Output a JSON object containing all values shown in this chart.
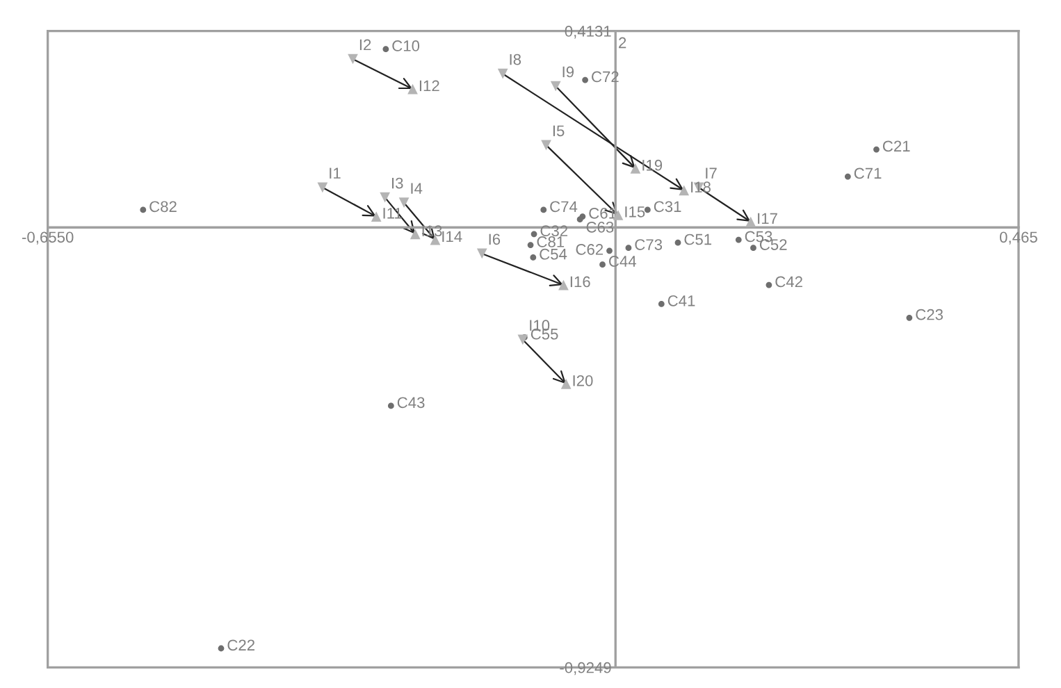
{
  "chart_data": {
    "type": "scatter",
    "ylabel": "2",
    "xlim": [
      -0.655,
      0.465
    ],
    "ylim": [
      -0.9249,
      0.4131
    ],
    "xticks": [
      {
        "value": -0.655,
        "label": "-0,6550"
      },
      {
        "value": 0.465,
        "label": "0,465"
      }
    ],
    "yticks": [
      {
        "value": 0.4131,
        "label": "0,4131"
      },
      {
        "value": -0.9249,
        "label": "-0,9249"
      }
    ],
    "grid": false,
    "legend": false,
    "series": [
      {
        "marker": "circle",
        "color": "#6e6e6e",
        "x": [
          -0.265,
          -0.035,
          -0.545,
          0.301,
          0.268,
          -0.083,
          -0.038,
          -0.041,
          0.037,
          -0.094,
          -0.098,
          -0.095,
          -0.007,
          0.015,
          -0.015,
          0.072,
          0.142,
          0.159,
          0.177,
          0.053,
          0.339,
          -0.105,
          -0.259,
          -0.455
        ],
        "values": [
          0.375,
          0.31,
          0.037,
          0.164,
          0.107,
          0.037,
          0.023,
          0.017,
          0.037,
          -0.014,
          -0.037,
          -0.063,
          -0.049,
          -0.043,
          -0.078,
          -0.032,
          -0.026,
          -0.043,
          -0.121,
          -0.161,
          -0.19,
          -0.231,
          -0.375,
          -0.885
        ],
        "value_labels": [
          "C10",
          "C72",
          "C82",
          "C21",
          "C71",
          "C74",
          "C61",
          "C63",
          "C31",
          "C32",
          "C81",
          "C54",
          "C62",
          "C73",
          "C44",
          "C51",
          "C53",
          "C52",
          "C42",
          "C41",
          "C23",
          "C55",
          "C43",
          "C22"
        ]
      },
      {
        "marker": "triangle_down",
        "color": "#b4b4b4",
        "x": [
          -0.303,
          -0.13,
          -0.069,
          -0.08,
          -0.338,
          -0.266,
          -0.244,
          -0.154,
          0.096,
          -0.107
        ],
        "values": [
          0.354,
          0.323,
          0.297,
          0.173,
          0.084,
          0.063,
          0.052,
          -0.055,
          0.084,
          -0.236
        ],
        "value_labels": [
          "I2",
          "I8",
          "I9",
          "I5",
          "I1",
          "I3",
          "I4",
          "I6",
          "I7",
          "I10"
        ]
      },
      {
        "marker": "triangle",
        "color": "#b4b4b4",
        "x": [
          -0.234,
          -0.276,
          -0.231,
          -0.208,
          0.023,
          0.079,
          0.003,
          0.156,
          -0.06,
          -0.057
        ],
        "values": [
          0.291,
          0.023,
          -0.014,
          -0.026,
          0.124,
          0.078,
          0.026,
          0.012,
          -0.121,
          -0.329
        ],
        "value_labels": [
          "I12",
          "I11",
          "I13",
          "I14",
          "I19",
          "I18",
          "I15",
          "I17",
          "I16",
          "I20"
        ]
      },
      {
        "type": "line",
        "color": "#222222",
        "x": [
          -0.303,
          -0.234
        ],
        "values": [
          0.354,
          0.291
        ]
      },
      {
        "type": "line",
        "color": "#222222",
        "x": [
          -0.13,
          0.079
        ],
        "values": [
          0.323,
          0.078
        ]
      },
      {
        "type": "line",
        "color": "#222222",
        "x": [
          -0.069,
          0.023
        ],
        "values": [
          0.297,
          0.124
        ]
      },
      {
        "type": "line",
        "color": "#222222",
        "x": [
          -0.08,
          0.003
        ],
        "values": [
          0.173,
          0.026
        ]
      },
      {
        "type": "line",
        "color": "#222222",
        "x": [
          -0.338,
          -0.276
        ],
        "values": [
          0.084,
          0.023
        ]
      },
      {
        "type": "line",
        "color": "#222222",
        "x": [
          -0.266,
          -0.231
        ],
        "values": [
          0.063,
          -0.014
        ]
      },
      {
        "type": "line",
        "color": "#222222",
        "x": [
          -0.244,
          -0.208
        ],
        "values": [
          0.052,
          -0.026
        ]
      },
      {
        "type": "line",
        "color": "#222222",
        "x": [
          -0.154,
          -0.06
        ],
        "values": [
          -0.055,
          -0.121
        ]
      },
      {
        "type": "line",
        "color": "#222222",
        "x": [
          0.096,
          0.156
        ],
        "values": [
          0.084,
          0.012
        ]
      },
      {
        "type": "line",
        "color": "#222222",
        "x": [
          -0.107,
          -0.057
        ],
        "values": [
          -0.236,
          -0.329
        ]
      }
    ]
  }
}
